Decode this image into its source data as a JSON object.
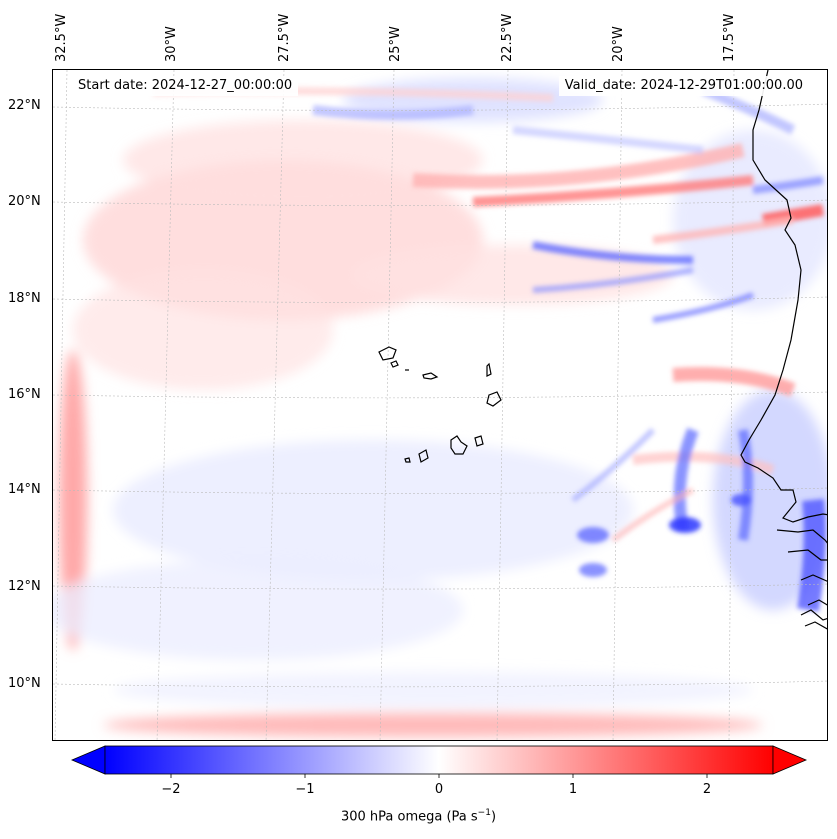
{
  "header": {
    "start_text": "Start date: 2024-12-27_00:00:00",
    "valid_text": "Valid_date: 2024-12-29T01:00:00.00"
  },
  "longitude_labels": [
    "32.5°W",
    "30°W",
    "27.5°W",
    "25°W",
    "22.5°W",
    "20°W",
    "17.5°W"
  ],
  "latitude_labels": [
    "22°N",
    "20°N",
    "18°N",
    "16°N",
    "14°N",
    "12°N",
    "10°N"
  ],
  "colorbar": {
    "ticks": [
      "−2",
      "−1",
      "0",
      "1",
      "2"
    ],
    "label": "300 hPa omega (Pa s",
    "label_sup": "−1",
    "label_end": ")",
    "min": -2.6,
    "max": 2.6,
    "colors": {
      "negative": "#0000ff",
      "zero": "#ffffff",
      "positive": "#ff0000"
    }
  },
  "map": {
    "extent_lon": [
      -32.5,
      -16.6
    ],
    "extent_lat": [
      8.8,
      22.8
    ],
    "coastline_color": "#000000",
    "gridline_color": "#bbbbbb"
  }
}
